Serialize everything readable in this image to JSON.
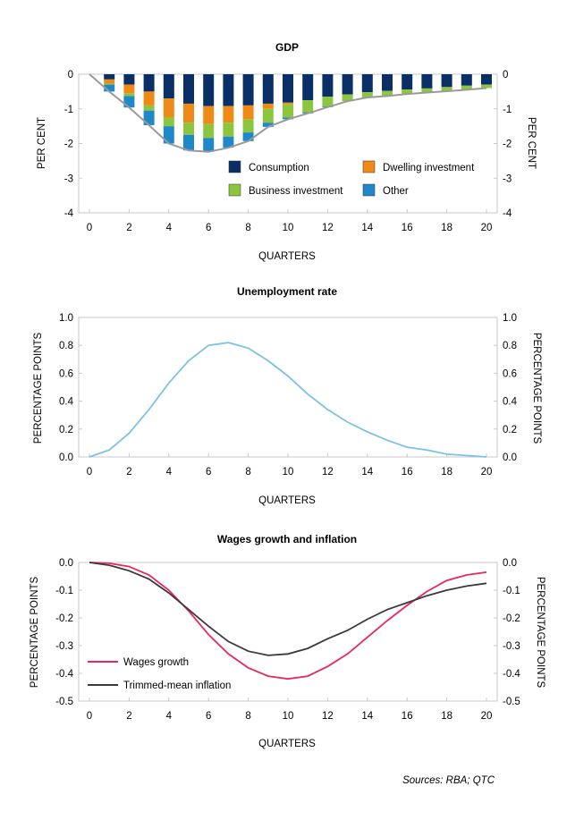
{
  "source": "Sources: RBA; QTC",
  "colors": {
    "consumption": "#0a2f66",
    "dwelling": "#f08a16",
    "business": "#8cc63f",
    "other": "#1e88c8",
    "gdp_line": "#9a9a9a",
    "unemployment": "#7ec1e5",
    "wages": "#e8285e",
    "inflation": "#3a3a3a",
    "axis": "#000000",
    "grid": "#c8c8c8"
  },
  "chart_data": [
    {
      "type": "bar",
      "stacked": true,
      "title": "GDP",
      "xlabel": "QUARTERS",
      "ylabel": "PER CENT",
      "ylabel_right": "PER CENT",
      "ylim": [
        -4,
        0
      ],
      "yticks": [
        "0",
        "-1",
        "-2",
        "-3",
        "-4"
      ],
      "yticks_right": [
        "0",
        "-1",
        "-2",
        "-3",
        "-4"
      ],
      "xticks": [
        "0",
        "2",
        "4",
        "6",
        "8",
        "10",
        "12",
        "14",
        "16",
        "18",
        "20"
      ],
      "legend_placement": "lower-right",
      "x": [
        1,
        2,
        3,
        4,
        5,
        6,
        7,
        8,
        9,
        10,
        11,
        12,
        13,
        14,
        15,
        16,
        17,
        18,
        19,
        20
      ],
      "series": [
        {
          "name": "Consumption",
          "color_key": "consumption",
          "values": [
            -0.15,
            -0.3,
            -0.5,
            -0.7,
            -0.85,
            -0.92,
            -0.92,
            -0.9,
            -0.85,
            -0.82,
            -0.75,
            -0.65,
            -0.58,
            -0.52,
            -0.48,
            -0.44,
            -0.41,
            -0.37,
            -0.33,
            -0.3
          ]
        },
        {
          "name": "Dwelling investment",
          "color_key": "dwelling",
          "values": [
            -0.12,
            -0.25,
            -0.4,
            -0.55,
            -0.55,
            -0.52,
            -0.48,
            -0.4,
            -0.15,
            -0.05,
            0,
            0,
            0,
            0,
            0,
            0,
            0,
            0,
            0,
            0
          ]
        },
        {
          "name": "Business investment",
          "color_key": "business",
          "values": [
            -0.03,
            -0.08,
            -0.15,
            -0.25,
            -0.35,
            -0.4,
            -0.4,
            -0.38,
            -0.4,
            -0.38,
            -0.35,
            -0.28,
            -0.2,
            -0.15,
            -0.15,
            -0.13,
            -0.12,
            -0.12,
            -0.12,
            -0.1
          ]
        },
        {
          "name": "Other",
          "color_key": "other",
          "values": [
            -0.2,
            -0.33,
            -0.42,
            -0.5,
            -0.45,
            -0.4,
            -0.32,
            -0.25,
            -0.12,
            -0.05,
            -0.03,
            -0.02,
            0,
            0,
            0,
            0,
            0,
            0,
            0,
            0
          ]
        }
      ],
      "total_line": {
        "x": [
          0,
          1,
          2,
          3,
          4,
          5,
          6,
          7,
          8,
          9,
          10,
          11,
          12,
          13,
          14,
          15,
          16,
          17,
          18,
          19,
          20
        ],
        "values": [
          0,
          -0.5,
          -0.96,
          -1.47,
          -2.0,
          -2.2,
          -2.24,
          -2.12,
          -1.93,
          -1.52,
          -1.3,
          -1.13,
          -0.95,
          -0.78,
          -0.67,
          -0.63,
          -0.57,
          -0.53,
          -0.49,
          -0.45,
          -0.4
        ]
      }
    },
    {
      "type": "line",
      "title": "Unemployment rate",
      "xlabel": "QUARTERS",
      "ylabel": "PERCENTAGE POINTS",
      "ylabel_right": "PERCENTAGE POINTS",
      "ylim": [
        0,
        1
      ],
      "yticks": [
        "1.0",
        "0.8",
        "0.6",
        "0.4",
        "0.2",
        "0.0"
      ],
      "yticks_right": [
        "1.0",
        "0.8",
        "0.6",
        "0.4",
        "0.2",
        "0.0"
      ],
      "xticks": [
        "0",
        "2",
        "4",
        "6",
        "8",
        "10",
        "12",
        "14",
        "16",
        "18",
        "20"
      ],
      "x": [
        0,
        1,
        2,
        3,
        4,
        5,
        6,
        7,
        8,
        9,
        10,
        11,
        12,
        13,
        14,
        15,
        16,
        17,
        18,
        19,
        20
      ],
      "series": [
        {
          "color_key": "unemployment",
          "values": [
            0.0,
            0.05,
            0.17,
            0.34,
            0.53,
            0.69,
            0.8,
            0.82,
            0.78,
            0.69,
            0.58,
            0.45,
            0.34,
            0.25,
            0.18,
            0.12,
            0.07,
            0.05,
            0.02,
            0.01,
            0.0
          ]
        }
      ]
    },
    {
      "type": "line",
      "title": "Wages growth and inflation",
      "xlabel": "QUARTERS",
      "ylabel": "PERCENTAGE POINTS",
      "ylabel_right": "PERCENTAGE POINTS",
      "ylim": [
        -0.5,
        0
      ],
      "yticks": [
        "0.0",
        "-0.1",
        "-0.2",
        "-0.3",
        "-0.4",
        "-0.5"
      ],
      "yticks_right": [
        "0.0",
        "-0.1",
        "-0.2",
        "-0.3",
        "-0.4",
        "-0.5"
      ],
      "xticks": [
        "0",
        "2",
        "4",
        "6",
        "8",
        "10",
        "12",
        "14",
        "16",
        "18",
        "20"
      ],
      "legend_placement": "lower-left",
      "x": [
        0,
        1,
        2,
        3,
        4,
        5,
        6,
        7,
        8,
        9,
        10,
        11,
        12,
        13,
        14,
        15,
        16,
        17,
        18,
        19,
        20
      ],
      "series": [
        {
          "name": "Wages growth",
          "color_key": "wages",
          "values": [
            0.0,
            -0.003,
            -0.015,
            -0.045,
            -0.1,
            -0.175,
            -0.26,
            -0.33,
            -0.38,
            -0.41,
            -0.42,
            -0.41,
            -0.375,
            -0.33,
            -0.27,
            -0.21,
            -0.155,
            -0.105,
            -0.065,
            -0.045,
            -0.035
          ]
        },
        {
          "name": "Trimmed-mean inflation",
          "color_key": "inflation",
          "values": [
            0.0,
            -0.01,
            -0.03,
            -0.06,
            -0.11,
            -0.17,
            -0.23,
            -0.285,
            -0.32,
            -0.335,
            -0.33,
            -0.31,
            -0.275,
            -0.245,
            -0.205,
            -0.17,
            -0.145,
            -0.12,
            -0.1,
            -0.085,
            -0.075
          ]
        }
      ]
    }
  ]
}
